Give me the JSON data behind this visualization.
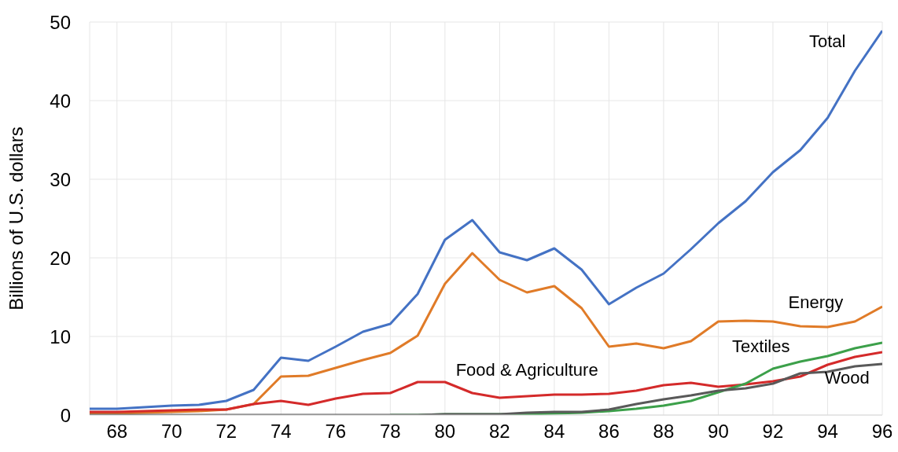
{
  "chart_data": {
    "type": "line",
    "ylabel": "Billions of U.S. dollars",
    "x": [
      67,
      68,
      69,
      70,
      71,
      72,
      73,
      74,
      75,
      76,
      77,
      78,
      79,
      80,
      81,
      82,
      83,
      84,
      85,
      86,
      87,
      88,
      89,
      90,
      91,
      92,
      93,
      94,
      95,
      96
    ],
    "xlim": [
      67,
      96
    ],
    "xticks": [
      68,
      70,
      72,
      74,
      76,
      78,
      80,
      82,
      84,
      86,
      88,
      90,
      92,
      94,
      96
    ],
    "ylim": [
      0,
      50
    ],
    "yticks": [
      0,
      10,
      20,
      30,
      40,
      50
    ],
    "grid": true,
    "legend": false,
    "marker": "none",
    "line_style": "solid",
    "series": [
      {
        "name": "Total",
        "color": "#4472c4",
        "values": [
          0.8,
          0.8,
          1.0,
          1.2,
          1.3,
          1.8,
          3.2,
          7.3,
          6.9,
          8.7,
          10.6,
          11.6,
          15.4,
          22.3,
          24.8,
          20.7,
          19.7,
          21.2,
          18.5,
          14.1,
          16.2,
          18.0,
          21.1,
          24.4,
          27.2,
          30.9,
          33.7,
          37.8,
          43.8,
          48.9
        ]
      },
      {
        "name": "Energy",
        "color": "#e07b28",
        "values": [
          0.2,
          0.2,
          0.3,
          0.4,
          0.5,
          0.7,
          1.4,
          4.9,
          5.0,
          6.0,
          7.0,
          7.9,
          10.1,
          16.7,
          20.6,
          17.2,
          15.6,
          16.4,
          13.6,
          8.7,
          9.1,
          8.5,
          9.4,
          11.9,
          12.0,
          11.9,
          11.3,
          11.2,
          11.9,
          13.8
        ]
      },
      {
        "name": "Food & Agriculture",
        "color": "#d42a2a",
        "values": [
          0.4,
          0.4,
          0.5,
          0.6,
          0.7,
          0.7,
          1.4,
          1.8,
          1.3,
          2.1,
          2.7,
          2.8,
          4.2,
          4.2,
          2.8,
          2.2,
          2.4,
          2.6,
          2.6,
          2.7,
          3.1,
          3.8,
          4.1,
          3.6,
          3.9,
          4.3,
          4.9,
          6.4,
          7.4,
          8.0
        ]
      },
      {
        "name": "Textiles",
        "color": "#3ca04a",
        "values": [
          null,
          null,
          null,
          null,
          null,
          null,
          null,
          null,
          null,
          null,
          null,
          0,
          0,
          0.1,
          0.1,
          0.1,
          0.1,
          0.2,
          0.3,
          0.5,
          0.8,
          1.2,
          1.8,
          2.9,
          4.0,
          5.9,
          6.8,
          7.5,
          8.5,
          9.2
        ]
      },
      {
        "name": "Wood",
        "color": "#595959",
        "values": [
          0,
          0,
          0,
          0,
          0,
          0,
          0,
          0,
          0,
          0,
          0,
          0,
          0,
          0.1,
          0.1,
          0.1,
          0.3,
          0.4,
          0.4,
          0.7,
          1.4,
          2.0,
          2.5,
          3.1,
          3.4,
          4.0,
          5.3,
          5.5,
          6.2,
          6.5
        ]
      }
    ]
  }
}
